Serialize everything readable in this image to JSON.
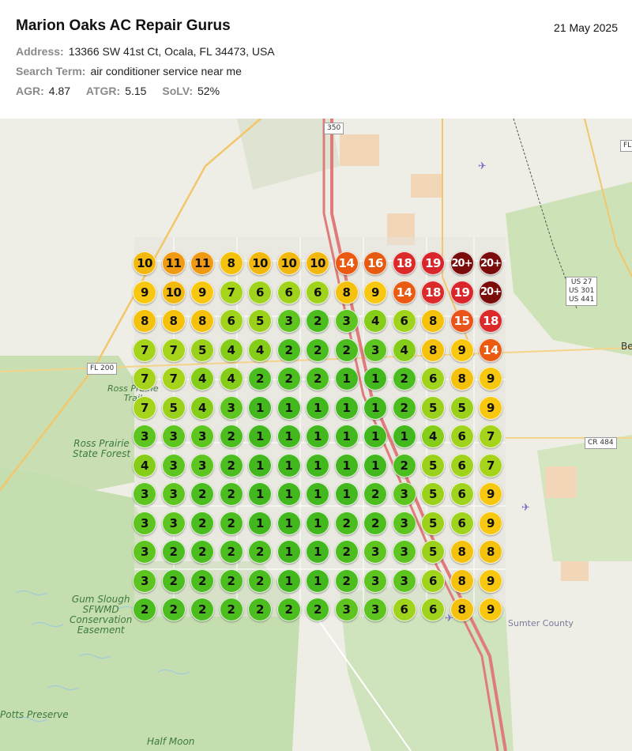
{
  "header": {
    "business_name": "Marion Oaks AC Repair Gurus",
    "date": "21 May 2025",
    "address_label": "Address:",
    "address": "13366 SW 41st Ct, Ocala, FL 34473, USA",
    "search_label": "Search Term:",
    "search_term": "air conditioner service near me",
    "metrics": [
      {
        "label": "AGR:",
        "value": "4.87"
      },
      {
        "label": "ATGR:",
        "value": "5.15"
      },
      {
        "label": "SoLV:",
        "value": "52%"
      }
    ]
  },
  "rank_colors": {
    "1": "#43b81e",
    "2": "#4cbd1f",
    "3": "#5ec41f",
    "4": "#86cd1a",
    "5": "#9bd11a",
    "6": "#9fd31c",
    "7": "#a5d41a",
    "8": "#f4c20d",
    "9": "#f8c810",
    "10": "#f3b80f",
    "11": "#ef9a12",
    "14": "#ea5a10",
    "15": "#e8541a",
    "16": "#e65a12",
    "18": "#dc2a2a",
    "19": "#d8262a",
    "20+": "#7a0c0c"
  },
  "grid": [
    [
      "10",
      "11",
      "11",
      "8",
      "10",
      "10",
      "10",
      "14",
      "16",
      "18",
      "19",
      "20+",
      "20+"
    ],
    [
      "9",
      "10",
      "9",
      "7",
      "6",
      "6",
      "6",
      "8",
      "9",
      "14",
      "18",
      "19",
      "20+"
    ],
    [
      "8",
      "8",
      "8",
      "6",
      "5",
      "3",
      "2",
      "3",
      "4",
      "6",
      "8",
      "15",
      "18"
    ],
    [
      "7",
      "7",
      "5",
      "4",
      "4",
      "2",
      "2",
      "2",
      "3",
      "4",
      "8",
      "9",
      "14"
    ],
    [
      "7",
      "7",
      "4",
      "4",
      "2",
      "2",
      "2",
      "1",
      "1",
      "2",
      "6",
      "8",
      "9"
    ],
    [
      "7",
      "5",
      "4",
      "3",
      "1",
      "1",
      "1",
      "1",
      "1",
      "2",
      "5",
      "5",
      "9"
    ],
    [
      "3",
      "3",
      "3",
      "2",
      "1",
      "1",
      "1",
      "1",
      "1",
      "1",
      "4",
      "6",
      "7"
    ],
    [
      "4",
      "3",
      "3",
      "2",
      "1",
      "1",
      "1",
      "1",
      "1",
      "2",
      "5",
      "6",
      "7"
    ],
    [
      "3",
      "3",
      "2",
      "2",
      "1",
      "1",
      "1",
      "1",
      "2",
      "3",
      "5",
      "6",
      "9"
    ],
    [
      "3",
      "3",
      "2",
      "2",
      "1",
      "1",
      "1",
      "2",
      "2",
      "3",
      "5",
      "6",
      "9"
    ],
    [
      "3",
      "2",
      "2",
      "2",
      "2",
      "1",
      "1",
      "2",
      "3",
      "3",
      "5",
      "8",
      "8"
    ],
    [
      "3",
      "2",
      "2",
      "2",
      "2",
      "1",
      "1",
      "2",
      "3",
      "3",
      "6",
      "8",
      "9"
    ],
    [
      "2",
      "2",
      "2",
      "2",
      "2",
      "2",
      "2",
      "3",
      "3",
      "6",
      "6",
      "8",
      "9"
    ]
  ],
  "map_labels": {
    "ross_prairie_trail": "Ross Prairie\nTrail",
    "ross_prairie_forest": "Ross Prairie\nState Forest",
    "gum_slough": "Gum Slough\nSFWMD\nConservation\nEasement",
    "potts_preserve": "Potts Preserve",
    "half_moon": "Half Moon",
    "sumter_county": "Sumter County",
    "fl200": "FL 200",
    "cr484": "CR 484",
    "us_routes": "US 27\nUS 301\nUS 441",
    "route350": "350",
    "fl_edge": "FL",
    "be_edge": "Be"
  }
}
